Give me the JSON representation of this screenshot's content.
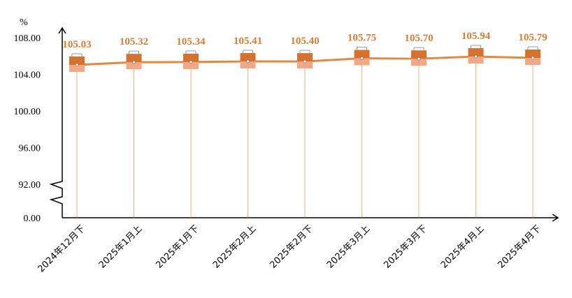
{
  "chart_data": {
    "type": "line",
    "unit": "%",
    "categories": [
      "2024年12月下",
      "2025年1月上",
      "2025年1月下",
      "2025年2月上",
      "2025年2月下",
      "2025年3月上",
      "2025年3月下",
      "2025年4月上",
      "2025年4月下"
    ],
    "series": [
      {
        "values": [
          105.03,
          105.32,
          105.34,
          105.41,
          105.4,
          105.75,
          105.7,
          105.94,
          105.79
        ]
      }
    ],
    "data_labels": [
      "105.03",
      "105.32",
      "105.34",
      "105.41",
      "105.40",
      "105.75",
      "105.70",
      "105.94",
      "105.79"
    ],
    "y_ticks": [
      "0.00",
      "92.00",
      "96.00",
      "100.00",
      "104.00",
      "108.00"
    ],
    "ylim": [
      92,
      108
    ],
    "y_axis_break": true,
    "grid": false,
    "colors": {
      "line": "#e08a45",
      "label": "#d97d35",
      "marker_dark": "#d6722e",
      "marker_light": "#f2a884"
    }
  }
}
